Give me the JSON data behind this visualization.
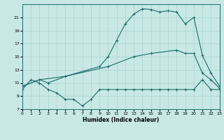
{
  "xlabel": "Humidex (Indice chaleur)",
  "bg_color": "#c8e8e5",
  "line_color": "#1a6b6b",
  "grid_color": "#a8d4d0",
  "xlim": [
    0,
    23
  ],
  "ylim": [
    7,
    23
  ],
  "xticks": [
    0,
    1,
    2,
    3,
    4,
    5,
    6,
    7,
    8,
    9,
    10,
    11,
    12,
    13,
    14,
    15,
    16,
    17,
    18,
    19,
    20,
    21,
    22,
    23
  ],
  "yticks": [
    7,
    9,
    11,
    13,
    15,
    17,
    19,
    21
  ],
  "line_top_x": [
    0,
    2,
    3,
    5,
    9,
    10,
    11,
    12,
    13,
    14,
    15,
    16,
    17,
    18,
    19,
    20,
    21,
    22,
    23
  ],
  "line_top_y": [
    10.5,
    11.5,
    11.0,
    12.0,
    13.5,
    15.0,
    17.5,
    20.0,
    21.5,
    22.3,
    22.2,
    21.8,
    22.0,
    21.8,
    20.0,
    21.0,
    15.2,
    12.5,
    10.5
  ],
  "line_mid_x": [
    0,
    2,
    5,
    10,
    13,
    15,
    18,
    19,
    20,
    21,
    22,
    23
  ],
  "line_mid_y": [
    10.5,
    11.5,
    12.0,
    13.5,
    15.0,
    15.5,
    16.0,
    15.5,
    15.5,
    12.5,
    11.5,
    10.2
  ],
  "line_bot_x": [
    0,
    1,
    2,
    3,
    4,
    5,
    6,
    7,
    8,
    9,
    10,
    11,
    12,
    13,
    14,
    15,
    16,
    17,
    18,
    19,
    20,
    21,
    22,
    23
  ],
  "line_bot_y": [
    10.0,
    11.5,
    11.0,
    10.0,
    9.5,
    8.5,
    8.5,
    7.5,
    8.5,
    10.0,
    10.0,
    10.0,
    10.0,
    10.0,
    10.0,
    10.0,
    10.0,
    10.0,
    10.0,
    10.0,
    10.0,
    11.5,
    10.0,
    10.0
  ]
}
